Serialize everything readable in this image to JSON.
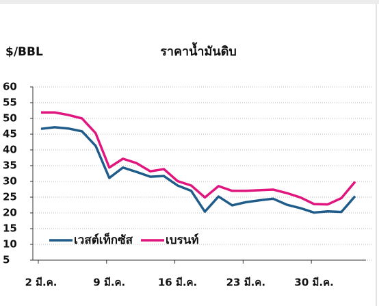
{
  "chart_data": {
    "type": "line",
    "title": "ราคาน้ำมันดิบ",
    "y_label": "$/BBL",
    "categories": [
      "2 มี.ค.",
      null,
      null,
      null,
      null,
      "9 มี.ค.",
      null,
      null,
      null,
      null,
      "16 มี.ค.",
      null,
      null,
      null,
      null,
      "23 มี.ค.",
      null,
      null,
      null,
      null,
      "30 มี.ค.",
      null,
      null,
      null
    ],
    "series": [
      {
        "name": "เวสต์เท็กซัส",
        "color": "#1f5c8a",
        "values": [
          46.7,
          47.2,
          46.8,
          45.9,
          41.3,
          31.1,
          34.4,
          33,
          31.5,
          31.7,
          28.7,
          27,
          20.4,
          25.2,
          22.4,
          23.4,
          24,
          24.5,
          22.6,
          21.5,
          20.1,
          20.5,
          20.3,
          25.3
        ]
      },
      {
        "name": "เบรนท์",
        "color": "#e0157d",
        "values": [
          51.9,
          51.9,
          51.1,
          50,
          45.3,
          34.4,
          37.2,
          35.8,
          33.2,
          33.9,
          30.1,
          28.7,
          24.9,
          28.5,
          27,
          27,
          27.2,
          27.4,
          26.3,
          24.9,
          22.8,
          22.7,
          24.7,
          29.9
        ]
      }
    ],
    "ylim": [
      5,
      60
    ],
    "yticks": [
      5,
      10,
      15,
      20,
      25,
      30,
      35,
      40,
      45,
      50,
      55,
      60
    ],
    "grid": true,
    "legend": "bottom-left"
  }
}
